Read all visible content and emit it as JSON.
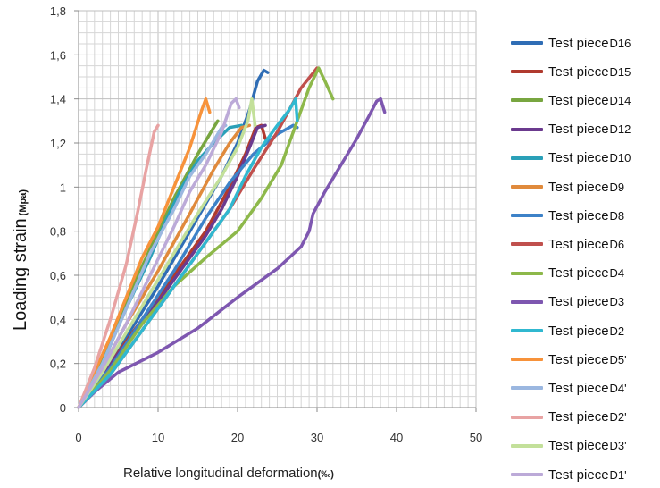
{
  "chart_data": {
    "type": "line",
    "xlabel": "Relative longitudinal deformation",
    "xunit": "(‰)",
    "ylabel": "Loading strain",
    "yunit": "(Mpa)",
    "xlim": [
      0,
      50
    ],
    "ylim": [
      0,
      1.8
    ],
    "x_ticks": [
      "0",
      "10",
      "20",
      "30",
      "40",
      "50"
    ],
    "y_ticks": [
      "0",
      "0,2",
      "0,4",
      "0,6",
      "0,8",
      "1",
      "1,2",
      "1,4",
      "1,6",
      "1,8"
    ],
    "grid": true,
    "legend_position": "right",
    "series": [
      {
        "name": "Test piece",
        "sub": "D16",
        "color": "#2f6db5",
        "points": [
          [
            0,
            0
          ],
          [
            3,
            0.15
          ],
          [
            6,
            0.32
          ],
          [
            10,
            0.55
          ],
          [
            14,
            0.8
          ],
          [
            18,
            1.05
          ],
          [
            20,
            1.2
          ],
          [
            21.5,
            1.35
          ],
          [
            22.5,
            1.48
          ],
          [
            23.3,
            1.53
          ],
          [
            23.8,
            1.52
          ]
        ]
      },
      {
        "name": "Test piece",
        "sub": "D15",
        "color": "#b03a2e",
        "points": [
          [
            0,
            0
          ],
          [
            4,
            0.2
          ],
          [
            8,
            0.4
          ],
          [
            12,
            0.6
          ],
          [
            16,
            0.8
          ],
          [
            19,
            1.0
          ],
          [
            21,
            1.15
          ],
          [
            22.3,
            1.27
          ],
          [
            23,
            1.28
          ],
          [
            23.5,
            1.22
          ]
        ]
      },
      {
        "name": "Test piece",
        "sub": "D14",
        "color": "#78a640",
        "points": [
          [
            0,
            0
          ],
          [
            3,
            0.22
          ],
          [
            6,
            0.48
          ],
          [
            9,
            0.72
          ],
          [
            12,
            0.95
          ],
          [
            15,
            1.15
          ],
          [
            17,
            1.27
          ],
          [
            17.5,
            1.3
          ]
        ]
      },
      {
        "name": "Test piece",
        "sub": "D12",
        "color": "#6b3a8e",
        "points": [
          [
            0,
            0
          ],
          [
            4,
            0.2
          ],
          [
            8,
            0.38
          ],
          [
            12,
            0.58
          ],
          [
            16,
            0.78
          ],
          [
            18,
            0.9
          ],
          [
            20,
            1.05
          ],
          [
            21.5,
            1.18
          ],
          [
            22.5,
            1.27
          ],
          [
            23.5,
            1.28
          ]
        ]
      },
      {
        "name": "Test piece",
        "sub": "D10",
        "color": "#2aa0b8",
        "points": [
          [
            0,
            0
          ],
          [
            3,
            0.2
          ],
          [
            6,
            0.45
          ],
          [
            9,
            0.68
          ],
          [
            11,
            0.85
          ],
          [
            13,
            1.0
          ],
          [
            15,
            1.12
          ],
          [
            17,
            1.2
          ],
          [
            19,
            1.27
          ],
          [
            20.5,
            1.28
          ]
        ]
      },
      {
        "name": "Test piece",
        "sub": "D9",
        "color": "#e08a3c",
        "points": [
          [
            0,
            0
          ],
          [
            3,
            0.18
          ],
          [
            6,
            0.38
          ],
          [
            10,
            0.62
          ],
          [
            14,
            0.88
          ],
          [
            17,
            1.08
          ],
          [
            19,
            1.2
          ],
          [
            20.5,
            1.27
          ],
          [
            21.5,
            1.28
          ]
        ]
      },
      {
        "name": "Test piece",
        "sub": "D8",
        "color": "#3d82c8",
        "points": [
          [
            0,
            0
          ],
          [
            4,
            0.18
          ],
          [
            8,
            0.4
          ],
          [
            12,
            0.62
          ],
          [
            16,
            0.86
          ],
          [
            19,
            1.02
          ],
          [
            22,
            1.15
          ],
          [
            25,
            1.24
          ],
          [
            27,
            1.28
          ],
          [
            27.5,
            1.27
          ]
        ]
      },
      {
        "name": "Test piece",
        "sub": "D6",
        "color": "#c0504d",
        "points": [
          [
            0,
            0
          ],
          [
            4,
            0.15
          ],
          [
            8,
            0.35
          ],
          [
            12,
            0.55
          ],
          [
            16,
            0.75
          ],
          [
            19,
            0.9
          ],
          [
            22,
            1.08
          ],
          [
            25,
            1.25
          ],
          [
            28,
            1.45
          ],
          [
            30,
            1.54
          ],
          [
            30.5,
            1.52
          ]
        ]
      },
      {
        "name": "Test piece",
        "sub": "D4",
        "color": "#8db84a",
        "points": [
          [
            0,
            0
          ],
          [
            4,
            0.17
          ],
          [
            8,
            0.38
          ],
          [
            12,
            0.55
          ],
          [
            16,
            0.68
          ],
          [
            20,
            0.8
          ],
          [
            23,
            0.95
          ],
          [
            25.5,
            1.1
          ],
          [
            27.5,
            1.3
          ],
          [
            29,
            1.45
          ],
          [
            30.2,
            1.54
          ],
          [
            31,
            1.48
          ],
          [
            32,
            1.4
          ]
        ]
      },
      {
        "name": "Test piece",
        "sub": "D3",
        "color": "#7e57b0",
        "points": [
          [
            0,
            0
          ],
          [
            2,
            0.07
          ],
          [
            5,
            0.16
          ],
          [
            10,
            0.25
          ],
          [
            15,
            0.36
          ],
          [
            20,
            0.5
          ],
          [
            25,
            0.63
          ],
          [
            28,
            0.73
          ],
          [
            29,
            0.8
          ],
          [
            29.5,
            0.88
          ],
          [
            31,
            0.98
          ],
          [
            33,
            1.1
          ],
          [
            35,
            1.22
          ],
          [
            36.5,
            1.32
          ],
          [
            37.5,
            1.39
          ],
          [
            38,
            1.4
          ],
          [
            38.5,
            1.34
          ]
        ]
      },
      {
        "name": "Test piece",
        "sub": "D2",
        "color": "#30b8d0",
        "points": [
          [
            0,
            0
          ],
          [
            4,
            0.15
          ],
          [
            8,
            0.35
          ],
          [
            12,
            0.55
          ],
          [
            16,
            0.75
          ],
          [
            19,
            0.9
          ],
          [
            21,
            1.05
          ],
          [
            23,
            1.18
          ],
          [
            25,
            1.28
          ],
          [
            26.5,
            1.35
          ],
          [
            27.3,
            1.4
          ],
          [
            27.5,
            1.3
          ]
        ]
      },
      {
        "name": "Test piece",
        "sub": "D5'",
        "color": "#f7923a",
        "points": [
          [
            0,
            0
          ],
          [
            2,
            0.16
          ],
          [
            4,
            0.32
          ],
          [
            6,
            0.5
          ],
          [
            8,
            0.68
          ],
          [
            10,
            0.82
          ],
          [
            12,
            1.0
          ],
          [
            14,
            1.18
          ],
          [
            15.5,
            1.35
          ],
          [
            16,
            1.4
          ],
          [
            16.5,
            1.34
          ]
        ]
      },
      {
        "name": "Test piece",
        "sub": "D4'",
        "color": "#9bb7e0",
        "points": [
          [
            0,
            0
          ],
          [
            3,
            0.2
          ],
          [
            6,
            0.45
          ],
          [
            9,
            0.7
          ],
          [
            12,
            0.9
          ],
          [
            14,
            1.05
          ],
          [
            16,
            1.15
          ],
          [
            18,
            1.27
          ],
          [
            18.5,
            1.28
          ]
        ]
      },
      {
        "name": "Test piece",
        "sub": "D2'",
        "color": "#e8a3a3",
        "points": [
          [
            0,
            0
          ],
          [
            2,
            0.18
          ],
          [
            4,
            0.4
          ],
          [
            6,
            0.65
          ],
          [
            7.5,
            0.9
          ],
          [
            8.5,
            1.08
          ],
          [
            9.5,
            1.25
          ],
          [
            10,
            1.28
          ]
        ]
      },
      {
        "name": "Test piece",
        "sub": "D3'",
        "color": "#c3e09a",
        "points": [
          [
            0,
            0
          ],
          [
            3,
            0.16
          ],
          [
            6,
            0.34
          ],
          [
            9,
            0.52
          ],
          [
            12,
            0.7
          ],
          [
            15,
            0.88
          ],
          [
            18,
            1.05
          ],
          [
            20,
            1.18
          ],
          [
            21.3,
            1.3
          ],
          [
            21.8,
            1.4
          ],
          [
            22.2,
            1.28
          ]
        ]
      },
      {
        "name": "Test piece",
        "sub": "D1'",
        "color": "#bcaad8",
        "points": [
          [
            0,
            0
          ],
          [
            3,
            0.18
          ],
          [
            6,
            0.38
          ],
          [
            9,
            0.6
          ],
          [
            12,
            0.82
          ],
          [
            14,
            0.98
          ],
          [
            16,
            1.1
          ],
          [
            18,
            1.25
          ],
          [
            19.2,
            1.38
          ],
          [
            19.8,
            1.4
          ],
          [
            20.2,
            1.36
          ]
        ]
      }
    ]
  }
}
